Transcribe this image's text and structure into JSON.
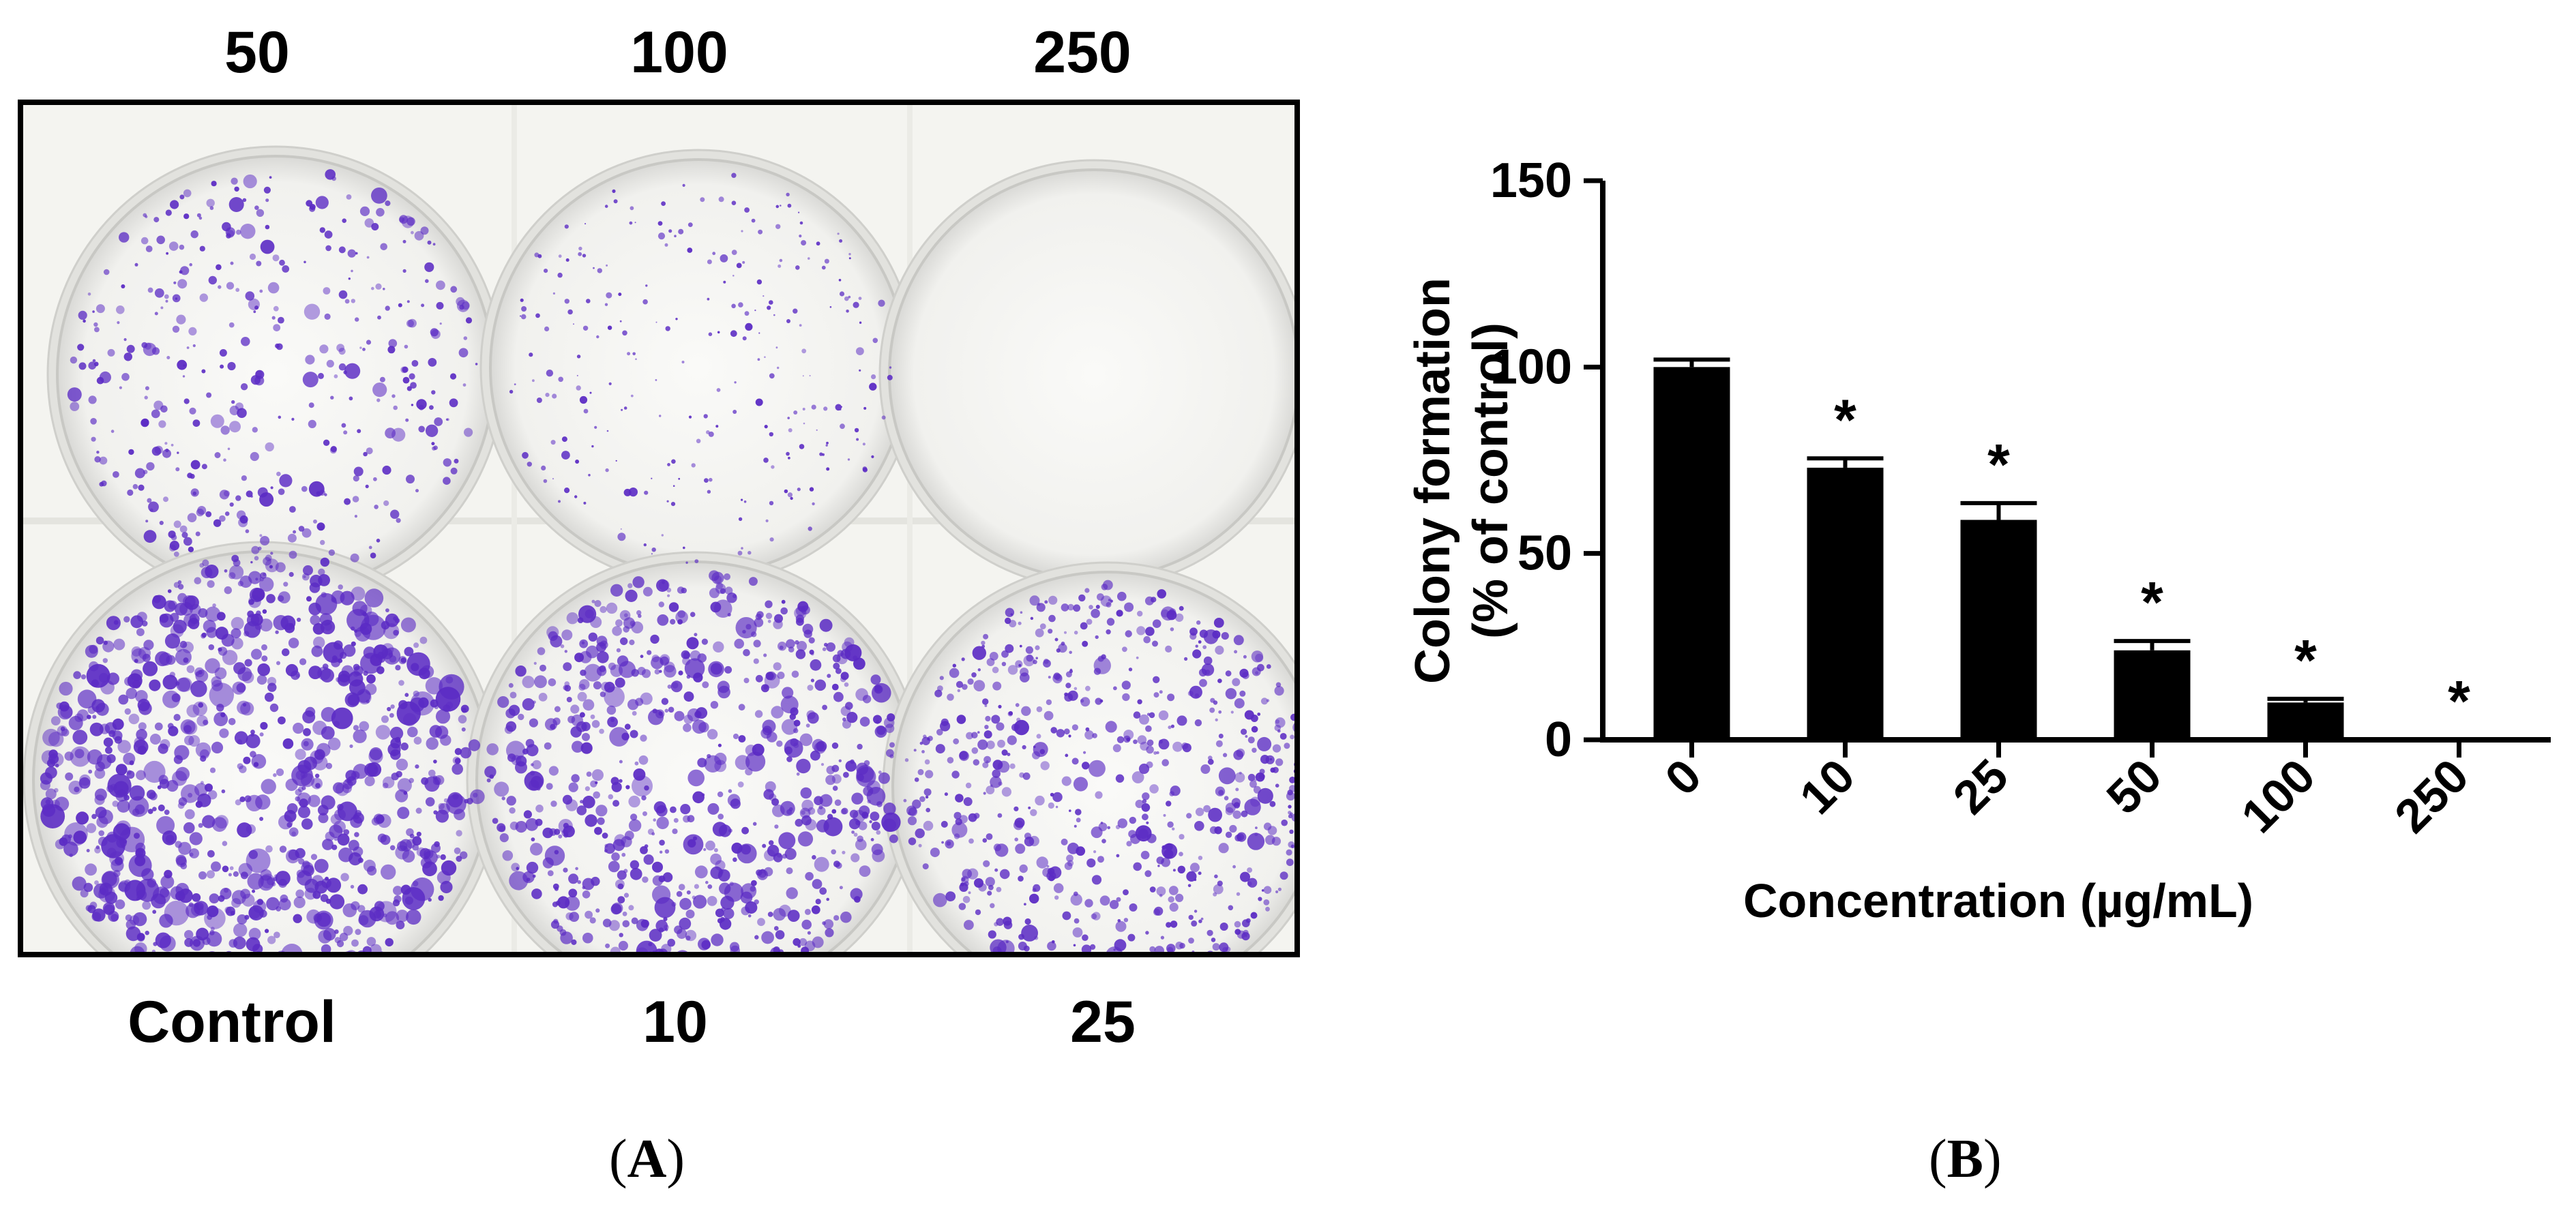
{
  "panel_a": {
    "top_labels": [
      "50",
      "100",
      "250"
    ],
    "bottom_labels": [
      "Control",
      "10",
      "25"
    ],
    "tag_letter": "A"
  },
  "panel_b": {
    "tag_letter": "B"
  },
  "chart_data": {
    "type": "bar",
    "categories": [
      "0",
      "10",
      "25",
      "50",
      "100",
      "250"
    ],
    "values": [
      100,
      73,
      59,
      24,
      10,
      0
    ],
    "errors": [
      2,
      2.5,
      4.5,
      2.5,
      1,
      0
    ],
    "significance": [
      "",
      "*",
      "*",
      "*",
      "*",
      "*"
    ],
    "xlabel": "Concentration (µg/mL)",
    "ylabel_lines": [
      "Colony formation",
      "(% of control)"
    ],
    "ylim": [
      0,
      150
    ],
    "yticks": [
      0,
      50,
      100,
      150
    ],
    "bar_color": "#000000",
    "grid": false
  },
  "colors": {
    "stain": "#5b2bc4",
    "plate_background": "#f5f5f1"
  }
}
